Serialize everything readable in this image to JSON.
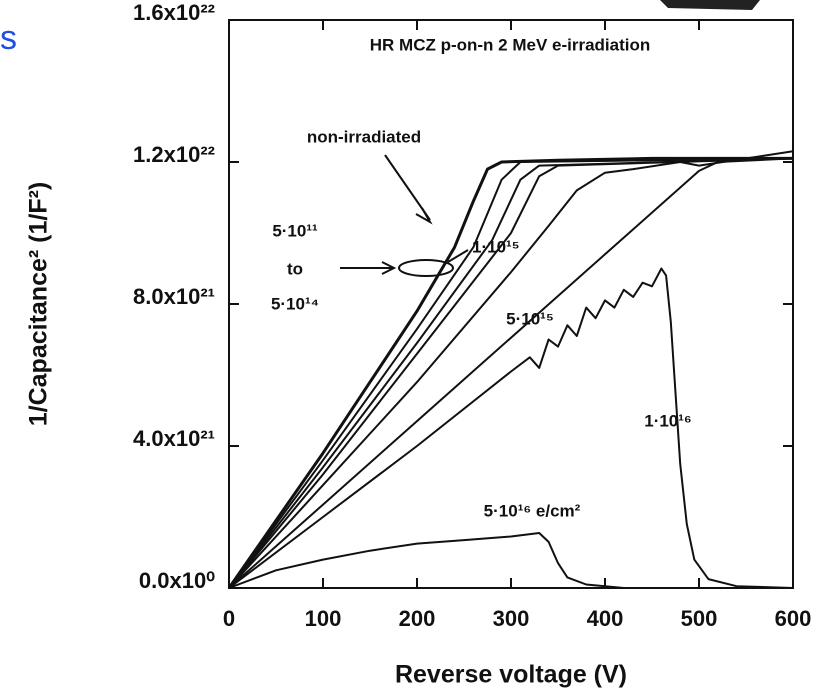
{
  "slide_fragment": "s",
  "chart_data": {
    "type": "line",
    "annotations": {
      "header": "HR MCZ  p-on-n    2 MeV e-irradiation",
      "non_irradiated": "non-irradiated",
      "range_low": "5·10¹¹",
      "range_to": "to",
      "range_high": "5·10¹⁴",
      "f_1e15": "1·10¹⁵",
      "f_5e15": "5·10¹⁵",
      "f_1e16": "1·10¹⁶",
      "f_5e16": "5·10¹⁶ e/cm²"
    },
    "x_label": "Reverse voltage  (V)",
    "y_label": "1/Capacitance²  (1/F²)",
    "xlim": [
      0,
      600
    ],
    "xticks": [
      0,
      100,
      200,
      300,
      400,
      500,
      600
    ],
    "ylim": [
      0,
      1.6e+22
    ],
    "yticks": [
      {
        "value": 0,
        "label": "0.0x10⁰"
      },
      {
        "value": 4e+21,
        "label": "4.0x10²¹"
      },
      {
        "value": 8e+21,
        "label": "8.0x10²¹"
      },
      {
        "value": 1.2e+22,
        "label": "1.2x10²²"
      },
      {
        "value": 1.6e+22,
        "label": "1.6x10²²"
      }
    ],
    "color": "#111111",
    "series": [
      {
        "x": [
          0,
          50,
          100,
          150,
          200,
          240,
          260,
          275,
          290,
          350,
          450,
          600
        ],
        "values": [
          0,
          1.9e+21,
          3.8e+21,
          5.8e+21,
          7.8e+21,
          9.6e+21,
          1.09e+22,
          1.18e+22,
          1.2e+22,
          1.205e+22,
          1.21e+22,
          1.21e+22
        ]
      },
      {
        "x": [
          0,
          100,
          200,
          260,
          290,
          310,
          600
        ],
        "values": [
          0,
          3.6e+21,
          7.3e+21,
          9.6e+21,
          1.15e+22,
          1.2e+22,
          1.21e+22
        ]
      },
      {
        "x": [
          0,
          100,
          200,
          280,
          310,
          330,
          600
        ],
        "values": [
          0,
          3.4e+21,
          6.9e+21,
          9.8e+21,
          1.15e+22,
          1.19e+22,
          1.21e+22
        ]
      },
      {
        "x": [
          0,
          100,
          200,
          300,
          330,
          350,
          600
        ],
        "values": [
          0,
          3.2e+21,
          6.6e+21,
          1e+22,
          1.16e+22,
          1.19e+22,
          1.21e+22
        ]
      },
      {
        "x": [
          0,
          100,
          200,
          300,
          340,
          370,
          400,
          430,
          480,
          500,
          600
        ],
        "values": [
          0,
          2.9e+21,
          5.8e+21,
          8.9e+21,
          1.02e+22,
          1.12e+22,
          1.17e+22,
          1.18e+22,
          1.2e+22,
          1.19e+22,
          1.23e+22
        ]
      },
      {
        "x": [
          0,
          100,
          200,
          300,
          400,
          500,
          520,
          600
        ],
        "values": [
          0,
          2.35e+21,
          4.7e+21,
          7.05e+21,
          9.4e+21,
          1.175e+22,
          1.2e+22,
          1.21e+22
        ]
      },
      {
        "x": [
          0,
          100,
          200,
          300,
          320,
          330,
          340,
          350,
          360,
          370,
          380,
          390,
          400,
          410,
          420,
          430,
          440,
          450,
          460,
          465,
          470,
          475,
          480,
          487,
          495,
          510,
          540,
          600
        ],
        "values": [
          0,
          2e+21,
          4e+21,
          6.1e+21,
          6.5e+21,
          6.2e+21,
          7e+21,
          6.8e+21,
          7.4e+21,
          7.1e+21,
          7.9e+21,
          7.6e+21,
          8.1e+21,
          7.9e+21,
          8.4e+21,
          8.2e+21,
          8.6e+21,
          8.5e+21,
          9e+21,
          8.8e+21,
          7.5e+21,
          5.5e+21,
          3.5e+21,
          1.8e+21,
          8e+20,
          2.5e+20,
          5e+19,
          0
        ]
      },
      {
        "x": [
          0,
          50,
          100,
          150,
          200,
          250,
          300,
          330,
          340,
          350,
          360,
          380,
          420,
          600
        ],
        "values": [
          0,
          5e+20,
          8e+20,
          1.05e+21,
          1.25e+21,
          1.35e+21,
          1.45e+21,
          1.55e+21,
          1.3e+21,
          7e+20,
          3e+20,
          1e+20,
          0,
          0
        ]
      }
    ]
  }
}
